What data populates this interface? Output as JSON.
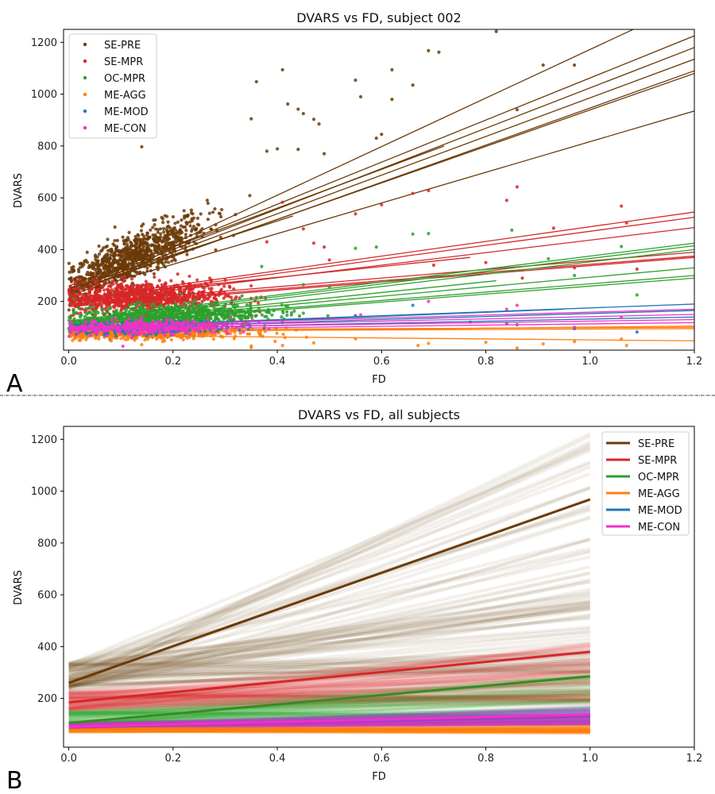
{
  "chart_data": [
    {
      "type": "scatter",
      "panel_label": "A",
      "title": "DVARS vs FD, subject 002",
      "xlabel": "FD",
      "ylabel": "DVARS",
      "xlim": [
        -0.01,
        1.2
      ],
      "ylim": [
        12,
        1250
      ],
      "xticks": [
        "0.0",
        "0.2",
        "0.4",
        "0.6",
        "0.8",
        "1.0",
        "1.2"
      ],
      "xtick_values": [
        0.0,
        0.2,
        0.4,
        0.6,
        0.8,
        1.0,
        1.2
      ],
      "yticks": [
        "200",
        "400",
        "600",
        "800",
        "1000",
        "1200"
      ],
      "ytick_values": [
        200,
        400,
        600,
        800,
        1000,
        1200
      ],
      "legend": {
        "placement": "top-left",
        "marker": "dot"
      },
      "series": [
        {
          "name": "SE-PRE",
          "color": "#6b3a08",
          "cluster": {
            "x_center": 0.12,
            "x_spread": 0.09,
            "y_intercept": 260,
            "slope": 900,
            "y_spread": 45,
            "n": 900
          },
          "outliers": [
            [
              0.14,
              797
            ],
            [
              0.36,
              1048
            ],
            [
              0.41,
              1094
            ],
            [
              0.42,
              962
            ],
            [
              0.44,
              942
            ],
            [
              0.45,
              925
            ],
            [
              0.47,
              903
            ],
            [
              0.48,
              885
            ],
            [
              0.35,
              905
            ],
            [
              0.55,
              1054
            ],
            [
              0.56,
              990
            ],
            [
              0.59,
              830
            ],
            [
              0.6,
              845
            ],
            [
              0.62,
              980
            ],
            [
              0.66,
              1035
            ],
            [
              0.69,
              1168
            ],
            [
              0.71,
              1162
            ],
            [
              0.62,
              1094
            ],
            [
              0.82,
              1242
            ],
            [
              0.86,
              940
            ],
            [
              0.91,
              1112
            ],
            [
              0.97,
              1112
            ],
            [
              0.4,
              789
            ],
            [
              0.38,
              780
            ],
            [
              0.44,
              787
            ],
            [
              0.49,
              770
            ]
          ],
          "fit_lines": [
            [
              0.0,
              235,
              1.2,
              1360
            ],
            [
              0.0,
              250,
              1.2,
              1225
            ],
            [
              0.0,
              245,
              1.2,
              1180
            ],
            [
              0.0,
              240,
              1.2,
              1135
            ],
            [
              0.0,
              230,
              1.2,
              1090
            ],
            [
              0.0,
              235,
              1.2,
              1080
            ],
            [
              0.0,
              225,
              1.2,
              935
            ],
            [
              0.0,
              260,
              0.72,
              800
            ],
            [
              0.0,
              250,
              0.43,
              530
            ]
          ]
        },
        {
          "name": "SE-MPR",
          "color": "#d62728",
          "cluster": {
            "x_center": 0.14,
            "x_spread": 0.1,
            "y_intercept": 210,
            "slope": 40,
            "y_spread": 30,
            "n": 900
          },
          "outliers": [
            [
              0.41,
              583
            ],
            [
              0.45,
              480
            ],
            [
              0.55,
              538
            ],
            [
              0.6,
              573
            ],
            [
              0.66,
              617
            ],
            [
              0.69,
              628
            ],
            [
              0.84,
              590
            ],
            [
              0.86,
              642
            ],
            [
              0.93,
              483
            ],
            [
              1.06,
              568
            ],
            [
              1.07,
              503
            ],
            [
              0.38,
              430
            ],
            [
              0.47,
              425
            ],
            [
              0.49,
              410
            ],
            [
              0.5,
              360
            ],
            [
              0.7,
              340
            ],
            [
              0.8,
              350
            ],
            [
              0.87,
              290
            ],
            [
              0.97,
              330
            ],
            [
              1.09,
              325
            ]
          ],
          "fit_lines": [
            [
              0.0,
              205,
              1.2,
              545
            ],
            [
              0.0,
              200,
              1.2,
              525
            ],
            [
              0.0,
              195,
              1.2,
              485
            ],
            [
              0.0,
              190,
              1.2,
              390
            ],
            [
              0.0,
              185,
              1.2,
              375
            ],
            [
              0.0,
              180,
              1.2,
              370
            ],
            [
              0.0,
              210,
              0.77,
              370
            ]
          ]
        },
        {
          "name": "OC-MPR",
          "color": "#2ca02c",
          "cluster": {
            "x_center": 0.18,
            "x_spread": 0.12,
            "y_intercept": 120,
            "slope": 100,
            "y_spread": 25,
            "n": 900
          },
          "outliers": [
            [
              0.55,
              405
            ],
            [
              0.59,
              410
            ],
            [
              0.66,
              460
            ],
            [
              0.69,
              462
            ],
            [
              0.85,
              475
            ],
            [
              0.92,
              365
            ],
            [
              1.06,
              412
            ],
            [
              0.45,
              265
            ],
            [
              0.5,
              255
            ],
            [
              0.37,
              335
            ],
            [
              0.97,
              300
            ],
            [
              1.09,
              225
            ]
          ],
          "fit_lines": [
            [
              0.0,
              125,
              1.2,
              425
            ],
            [
              0.0,
              120,
              1.2,
              415
            ],
            [
              0.0,
              115,
              1.2,
              400
            ],
            [
              0.0,
              110,
              1.2,
              330
            ],
            [
              0.0,
              108,
              1.2,
              300
            ],
            [
              0.0,
              105,
              1.2,
              290
            ],
            [
              0.0,
              110,
              0.82,
              280
            ]
          ]
        },
        {
          "name": "ME-AGG",
          "color": "#ff7f0e",
          "cluster": {
            "x_center": 0.15,
            "x_spread": 0.12,
            "y_intercept": 78,
            "slope": 10,
            "y_spread": 12,
            "n": 700
          },
          "outliers": [
            [
              0.14,
              33
            ],
            [
              0.18,
              45
            ],
            [
              0.35,
              28
            ],
            [
              0.35,
              22
            ],
            [
              0.41,
              30
            ],
            [
              0.47,
              40
            ],
            [
              0.55,
              56
            ],
            [
              0.67,
              30
            ],
            [
              0.69,
              38
            ],
            [
              0.8,
              42
            ],
            [
              0.86,
              20
            ],
            [
              0.91,
              36
            ],
            [
              0.97,
              45
            ],
            [
              1.06,
              55
            ],
            [
              1.07,
              30
            ]
          ],
          "fit_lines": [
            [
              0.0,
              90,
              1.2,
              100
            ],
            [
              0.0,
              85,
              1.2,
              95
            ],
            [
              0.0,
              80,
              1.2,
              105
            ],
            [
              0.0,
              70,
              1.2,
              48
            ]
          ]
        },
        {
          "name": "ME-MOD",
          "color": "#1f77b4",
          "cluster": {
            "x_center": 0.15,
            "x_spread": 0.1,
            "y_intercept": 92,
            "slope": 30,
            "y_spread": 12,
            "n": 300
          },
          "outliers": [
            [
              0.55,
              145
            ],
            [
              0.66,
              185
            ],
            [
              0.77,
              120
            ],
            [
              0.84,
              115
            ],
            [
              0.86,
              110
            ],
            [
              1.09,
              82
            ],
            [
              0.97,
              95
            ]
          ],
          "fit_lines": [
            [
              0.0,
              100,
              1.2,
              190
            ],
            [
              0.0,
              95,
              1.2,
              165
            ],
            [
              0.0,
              92,
              1.2,
              140
            ],
            [
              0.0,
              95,
              0.95,
              170
            ]
          ]
        },
        {
          "name": "ME-CON",
          "color": "#f032c8",
          "cluster": {
            "x_center": 0.15,
            "x_spread": 0.1,
            "y_intercept": 96,
            "slope": 30,
            "y_spread": 15,
            "n": 300
          },
          "outliers": [
            [
              0.56,
              148
            ],
            [
              0.69,
              200
            ],
            [
              0.84,
              170
            ],
            [
              0.86,
              185
            ],
            [
              0.97,
              100
            ],
            [
              1.06,
              138
            ]
          ],
          "fit_lines": [
            [
              0.0,
              102,
              1.2,
              170
            ],
            [
              0.0,
              98,
              1.2,
              150
            ],
            [
              0.0,
              95,
              1.2,
              130
            ],
            [
              0.0,
              90,
              1.2,
              118
            ]
          ]
        }
      ]
    },
    {
      "type": "line",
      "panel_label": "B",
      "title": "DVARS vs FD, all subjects",
      "xlabel": "FD",
      "ylabel": "DVARS",
      "xlim": [
        -0.01,
        1.2
      ],
      "ylim": [
        12,
        1250
      ],
      "xticks": [
        "0.0",
        "0.2",
        "0.4",
        "0.6",
        "0.8",
        "1.0",
        "1.2"
      ],
      "xtick_values": [
        0.0,
        0.2,
        0.4,
        0.6,
        0.8,
        1.0,
        1.2
      ],
      "yticks": [
        "200",
        "400",
        "600",
        "800",
        "1000",
        "1200"
      ],
      "ytick_values": [
        200,
        400,
        600,
        800,
        1000,
        1200
      ],
      "legend": {
        "placement": "top-right",
        "marker": "line"
      },
      "series": [
        {
          "name": "SE-PRE",
          "color": "#6b3a08",
          "mean_line": [
            [
              0.0,
              260
            ],
            [
              1.0,
              968
            ]
          ],
          "subject_lines": {
            "intercept_range": [
              230,
              340
            ],
            "end_range": [
              300,
              1225
            ],
            "n": 90,
            "alpha": 0.08
          }
        },
        {
          "name": "SE-MPR",
          "color": "#d62728",
          "mean_line": [
            [
              0.0,
              185
            ],
            [
              1.0,
              380
            ]
          ],
          "subject_lines": {
            "intercept_range": [
              150,
              230
            ],
            "end_range": [
              180,
              420
            ],
            "n": 90,
            "alpha": 0.08
          }
        },
        {
          "name": "OC-MPR",
          "color": "#2ca02c",
          "mean_line": [
            [
              0.0,
              105
            ],
            [
              1.0,
              285
            ]
          ],
          "subject_lines": {
            "intercept_range": [
              90,
              150
            ],
            "end_range": [
              100,
              300
            ],
            "n": 90,
            "alpha": 0.08
          }
        },
        {
          "name": "ME-AGG",
          "color": "#ff7f0e",
          "mean_line": [
            [
              0.0,
              75
            ],
            [
              1.0,
              72
            ]
          ],
          "subject_lines": {
            "intercept_range": [
              70,
              85
            ],
            "end_range": [
              65,
              95
            ],
            "n": 60,
            "alpha": 0.1
          }
        },
        {
          "name": "ME-MOD",
          "color": "#1f77b4",
          "mean_line": [
            [
              0.0,
              88
            ],
            [
              1.0,
              130
            ]
          ],
          "subject_lines": {
            "intercept_range": [
              80,
              100
            ],
            "end_range": [
              100,
              170
            ],
            "n": 60,
            "alpha": 0.08
          }
        },
        {
          "name": "ME-CON",
          "color": "#f032c8",
          "mean_line": [
            [
              0.0,
              90
            ],
            [
              1.0,
              138
            ]
          ],
          "subject_lines": {
            "intercept_range": [
              82,
              102
            ],
            "end_range": [
              100,
              170
            ],
            "n": 60,
            "alpha": 0.08
          }
        }
      ]
    }
  ]
}
